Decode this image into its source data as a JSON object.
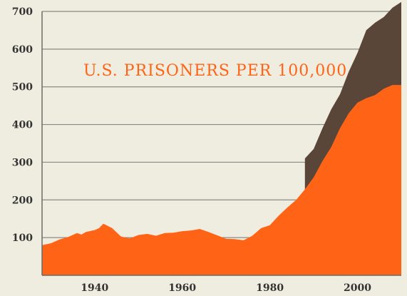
{
  "chart_data": {
    "type": "area",
    "title": "U.S. PRISONERS PER 100,000",
    "x_ticks": [
      "1940",
      "1960",
      "1980",
      "2000"
    ],
    "y_ticks": [
      "100",
      "200",
      "300",
      "400",
      "500",
      "600",
      "700"
    ],
    "xlim": [
      1928,
      2010
    ],
    "ylim": [
      0,
      700
    ],
    "grid": true,
    "colors": {
      "background": "#efece0",
      "lower": "#ff6416",
      "upper": "#5a4638",
      "title": "#ff6416",
      "grid": "#8a8a84"
    },
    "series": [
      {
        "x": [
          1928,
          1930,
          1932,
          1934,
          1936,
          1937,
          1938,
          1940,
          1941,
          1942,
          1944,
          1946,
          1948,
          1950,
          1952,
          1954,
          1956,
          1958,
          1960,
          1962,
          1964,
          1966,
          1968,
          1970,
          1972,
          1974,
          1976,
          1978,
          1980,
          1982,
          1984,
          1986,
          1988,
          1990,
          1992,
          1994,
          1996,
          1998,
          2000,
          2002,
          2004,
          2006,
          2008,
          2010
        ],
        "values": [
          80,
          85,
          95,
          102,
          112,
          108,
          115,
          120,
          125,
          137,
          125,
          103,
          98,
          107,
          110,
          105,
          112,
          113,
          117,
          119,
          123,
          115,
          106,
          97,
          96,
          93,
          105,
          125,
          133,
          158,
          180,
          200,
          228,
          260,
          303,
          340,
          390,
          430,
          458,
          470,
          478,
          495,
          505,
          505
        ]
      },
      {
        "x": [
          1988,
          1990,
          1992,
          1994,
          1996,
          1998,
          2000,
          2002,
          2004,
          2006,
          2008,
          2010
        ],
        "values": [
          310,
          335,
          390,
          440,
          480,
          540,
          590,
          650,
          670,
          685,
          710,
          725
        ]
      }
    ]
  }
}
